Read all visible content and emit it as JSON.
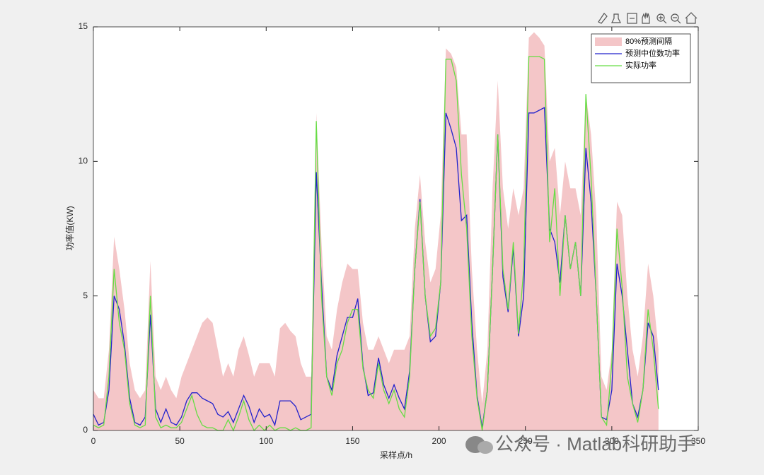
{
  "chart_data": {
    "type": "line",
    "xlabel": "采样点/h",
    "ylabel": "功率值(KW)",
    "xlim": [
      0,
      350
    ],
    "xticks": [
      0,
      50,
      100,
      150,
      200,
      250,
      300,
      350
    ],
    "ylim": [
      0,
      15
    ],
    "yticks": [
      0,
      5,
      10,
      15
    ],
    "grid": false,
    "legend": "upper right",
    "x": [
      0,
      3,
      6,
      9,
      12,
      15,
      18,
      21,
      24,
      27,
      30,
      33,
      36,
      39,
      42,
      45,
      48,
      51,
      54,
      57,
      60,
      63,
      66,
      69,
      72,
      75,
      78,
      81,
      84,
      87,
      90,
      93,
      96,
      99,
      102,
      105,
      108,
      111,
      114,
      117,
      120,
      123,
      126,
      129,
      132,
      135,
      138,
      141,
      144,
      147,
      150,
      153,
      156,
      159,
      162,
      165,
      168,
      171,
      174,
      177,
      180,
      183,
      186,
      189,
      192,
      195,
      198,
      201,
      204,
      207,
      210,
      213,
      216,
      219,
      222,
      225,
      228,
      231,
      234,
      237,
      240,
      243,
      246,
      249,
      252,
      255,
      258,
      261,
      264,
      267,
      270,
      273,
      276,
      279,
      282,
      285,
      288,
      291,
      294,
      297,
      300,
      303,
      306,
      309,
      312,
      315,
      318,
      321,
      324,
      327
    ],
    "series": [
      {
        "name": "80%预测间隔",
        "type": "area",
        "color": "#f4c6c8",
        "values": [
          1.5,
          1.2,
          1.2,
          3,
          7.2,
          6,
          4.5,
          2.5,
          1.5,
          1.2,
          1.5,
          6.3,
          2,
          1.5,
          2,
          1.5,
          1.2,
          2,
          2.5,
          3,
          3.5,
          4,
          4.2,
          4,
          3,
          2,
          2.5,
          2,
          3,
          3.5,
          2.8,
          2,
          2.5,
          2.5,
          2.5,
          2,
          3.8,
          4,
          3.7,
          3.5,
          2.5,
          2,
          2,
          11.8,
          7,
          3.5,
          3,
          4.5,
          5.5,
          6.2,
          6,
          6,
          4,
          3,
          3,
          3.5,
          3,
          2.5,
          3,
          3,
          3,
          3.5,
          7.5,
          9.5,
          7,
          5.5,
          6,
          8,
          14.2,
          14,
          13.5,
          11,
          11,
          6,
          3,
          1,
          3,
          9,
          13,
          9,
          7.5,
          9,
          8,
          9,
          14.6,
          14.8,
          14.6,
          14.3,
          10,
          10.5,
          8,
          10,
          9,
          9,
          8,
          12.5,
          11,
          8,
          2,
          1.5,
          3,
          8.5,
          8,
          5,
          3,
          2,
          3.5,
          6.2,
          5,
          3
        ]
      },
      {
        "name": "预测中位数功率",
        "type": "line",
        "color": "#2222cc",
        "values": [
          0.6,
          0.2,
          0.3,
          1.5,
          5,
          4.5,
          3.2,
          1.2,
          0.3,
          0.2,
          0.5,
          4.3,
          0.8,
          0.3,
          0.8,
          0.3,
          0.2,
          0.5,
          1.1,
          1.4,
          1.4,
          1.2,
          1.1,
          1,
          0.6,
          0.5,
          0.7,
          0.3,
          0.8,
          1.3,
          0.9,
          0.3,
          0.8,
          0.5,
          0.6,
          0.2,
          1.1,
          1.1,
          1.1,
          0.9,
          0.4,
          0.5,
          0.6,
          9.6,
          5.5,
          2,
          1.5,
          2.8,
          3.5,
          4.2,
          4.2,
          4.9,
          2.4,
          1.3,
          1.4,
          2.7,
          1.7,
          1.2,
          1.7,
          1.2,
          0.8,
          2.2,
          6,
          8.6,
          5,
          3.3,
          3.5,
          5.5,
          11.8,
          11.2,
          10.5,
          7.8,
          8,
          4,
          1.3,
          0.1,
          1.5,
          6,
          11,
          5.7,
          4.4,
          6.8,
          3.5,
          5,
          11.8,
          11.8,
          11.9,
          12,
          7.5,
          7,
          5.5,
          8,
          6,
          7,
          5,
          10.5,
          8.5,
          5,
          0.5,
          0.4,
          1.5,
          6.2,
          5,
          3,
          1,
          0.5,
          1.5,
          4,
          3.5,
          1.5
        ]
      },
      {
        "name": "实际功率",
        "type": "line",
        "color": "#66dd44",
        "values": [
          0.2,
          0.1,
          0.2,
          2,
          6,
          4,
          3,
          1,
          0.2,
          0.1,
          0.2,
          5,
          0.5,
          0.1,
          0.2,
          0.1,
          0.1,
          0.3,
          0.8,
          1.3,
          0.6,
          0.2,
          0.1,
          0.1,
          0,
          0,
          0.4,
          0,
          0.5,
          1.1,
          0.4,
          0,
          0.2,
          0,
          0.2,
          0,
          0.1,
          0.1,
          0,
          0.1,
          0,
          0,
          0.1,
          11.5,
          5,
          2,
          1.3,
          2.5,
          3,
          4,
          4.5,
          4.5,
          2.3,
          1.5,
          1.2,
          2.5,
          1.5,
          1,
          1.5,
          0.8,
          0.5,
          2,
          6,
          8.5,
          5,
          3.5,
          3.8,
          5.5,
          13.8,
          13.8,
          13,
          9.5,
          7.5,
          3.5,
          1.2,
          0,
          1.5,
          6,
          11,
          6,
          4.5,
          7,
          3.6,
          6,
          13.9,
          13.9,
          13.9,
          13.8,
          7,
          9,
          5,
          8,
          6,
          7,
          5,
          12.5,
          9.4,
          5,
          0.5,
          0.2,
          2.5,
          7.5,
          5.3,
          2,
          1,
          0.3,
          1.5,
          4.5,
          3,
          0.8
        ]
      }
    ],
    "watermark": "公众号 · Matlab科研助手"
  }
}
